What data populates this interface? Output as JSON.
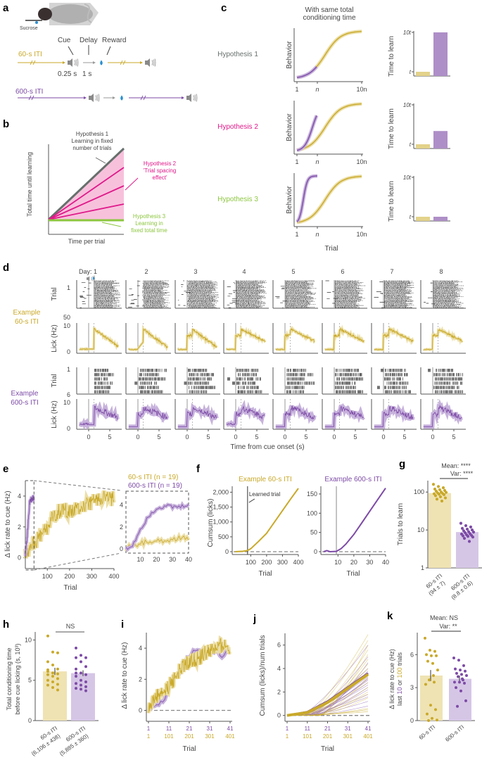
{
  "colors": {
    "iti60": "#c9a92a",
    "iti60_light": "#ecdfa8",
    "iti600": "#7d4ba6",
    "iti600_light": "#c7b2dc",
    "hyp1": "#66706c",
    "hyp2": "#e0198a",
    "hyp2_fill": "#f7c1dc",
    "hyp3": "#8cc63f",
    "water": "#2a8fd0",
    "raster": "#333333",
    "dashed": "#888888"
  },
  "panel_labels": [
    "a",
    "b",
    "c",
    "d",
    "e",
    "f",
    "g",
    "h",
    "i",
    "j",
    "k"
  ],
  "panel_a": {
    "sucrose_label": "Sucrose",
    "cue_label": "Cue",
    "delay_label": "Delay",
    "reward_label": "Reward",
    "iti60_label": "60-s ITI",
    "iti600_label": "600-s ITI",
    "cue_duration": "0.25 s",
    "delay_duration": "1 s",
    "icons": [
      "mouse-icon",
      "speaker-icon",
      "water-drop-icon"
    ]
  },
  "panel_b": {
    "ylabel": "Total time until learning",
    "xlabel": "Time per trial",
    "hyp1_text": [
      "Hypothesis 1",
      "Learning in fixed",
      "number of trials"
    ],
    "hyp2_text": [
      "Hypothesis 2",
      "'Trial spacing",
      "effect'"
    ],
    "hyp3_text": [
      "Hypothesis 3",
      "Learning in",
      "fixed total time"
    ]
  },
  "panel_c": {
    "title": [
      "With same total",
      "conditioning time"
    ],
    "rows": [
      {
        "label": "Hypothesis 1",
        "time_to_learn": {
          "iti60": 1,
          "iti600": 10
        }
      },
      {
        "label": "Hypothesis 2",
        "time_to_learn": {
          "iti60": 1,
          "iti600": 4
        }
      },
      {
        "label": "Hypothesis 3",
        "time_to_learn": {
          "iti60": 1,
          "iti600": 1
        }
      }
    ],
    "behavior_ylabel": "Behavior",
    "bar_ylabel": "Time to learn",
    "xticks": [
      "1",
      "n",
      "10n"
    ],
    "bar_yticks": [
      "t",
      "10t"
    ],
    "xlabel": "Trial"
  },
  "panel_d": {
    "day_prefix": "Day: ",
    "days": [
      "1",
      "2",
      "3",
      "4",
      "5",
      "6",
      "7",
      "8"
    ],
    "row60_label": [
      "Example",
      "60-s ITI"
    ],
    "row600_label": [
      "Example",
      "600-s ITI"
    ],
    "trial_ylabel": "Trial",
    "lick_ylabel": "Lick (Hz)",
    "raster60_yticks": [
      "1",
      "50"
    ],
    "raster600_yticks": [
      "1",
      "6"
    ],
    "lick_yticks": [
      "0",
      "10"
    ],
    "xticks": [
      "0",
      "5"
    ],
    "xlabel": "Time from cue onset (s)"
  },
  "chart_data": [
    {
      "id": "e",
      "type": "line",
      "xlabel": "Trial",
      "ylabel": "Δ lick rate to cue (Hz)",
      "xlim": [
        1,
        400
      ],
      "ylim": [
        -0.7,
        5
      ],
      "xticks": [
        100,
        200,
        300,
        400
      ],
      "yticks": [
        0,
        2,
        4
      ],
      "legend": [
        "60-s ITI (n = 19)",
        "600-s ITI (n = 19)"
      ],
      "legend_position": "top-right",
      "series": [
        {
          "name": "60-s ITI",
          "x": [
            1,
            25,
            50,
            75,
            100,
            125,
            150,
            175,
            200,
            225,
            250,
            275,
            300,
            325,
            350,
            375,
            400
          ],
          "values": [
            0.1,
            0.9,
            1.1,
            1.5,
            2.0,
            2.6,
            3.0,
            3.1,
            3.0,
            3.1,
            3.3,
            3.4,
            3.6,
            3.8,
            4.0,
            3.9,
            3.8
          ]
        },
        {
          "name": "600-s ITI",
          "x": [
            1,
            10,
            20,
            30,
            40
          ],
          "values": [
            0.1,
            1.5,
            3.6,
            3.8,
            3.9
          ]
        }
      ],
      "inset": {
        "xlim": [
          1,
          40
        ],
        "ylim": [
          -0.5,
          5
        ],
        "xticks": [
          10,
          20,
          30,
          40
        ],
        "yticks": [
          0,
          2,
          4
        ],
        "series": [
          {
            "name": "60-s ITI",
            "x": [
              1,
              5,
              10,
              15,
              20,
              25,
              30,
              35,
              40
            ],
            "values": [
              0.0,
              0.4,
              0.5,
              0.6,
              0.7,
              0.8,
              0.9,
              1.0,
              0.9
            ]
          },
          {
            "name": "600-s ITI",
            "x": [
              1,
              5,
              10,
              15,
              20,
              25,
              30,
              35,
              40
            ],
            "values": [
              0.0,
              0.3,
              1.8,
              3.0,
              3.7,
              3.9,
              3.8,
              3.8,
              4.1
            ]
          }
        ]
      }
    },
    {
      "id": "f1",
      "type": "line",
      "title": "Example 60-s ITI",
      "xlabel": "Trial",
      "ylabel": "Cumsum (licks)",
      "xlim": [
        1,
        400
      ],
      "ylim": [
        -100,
        2200
      ],
      "xticks": [
        100,
        200,
        300,
        400
      ],
      "yticks": [
        0,
        500,
        1000,
        1500,
        2000
      ],
      "ytick_labels": [
        "0",
        "500",
        "1,000",
        "1,500",
        "2,000"
      ],
      "annotation": "Learned trial",
      "learned_trial": 80,
      "x": [
        1,
        50,
        80,
        100,
        150,
        200,
        250,
        300,
        350,
        400
      ],
      "values": [
        0,
        15,
        40,
        100,
        350,
        620,
        1000,
        1380,
        1760,
        2130
      ]
    },
    {
      "id": "f2",
      "type": "line",
      "title": "Example 600-s ITI",
      "xlabel": "Trial",
      "ylabel": "",
      "xlim": [
        1,
        40
      ],
      "ylim": [
        -8,
        170
      ],
      "xticks": [
        10,
        20,
        30,
        40
      ],
      "yticks": [
        0,
        50,
        100,
        150
      ],
      "learned_trial": 9,
      "x": [
        1,
        3,
        5,
        9,
        12,
        15,
        20,
        25,
        30,
        35,
        40
      ],
      "values": [
        0,
        3,
        0,
        1,
        8,
        20,
        45,
        75,
        105,
        135,
        165
      ]
    },
    {
      "id": "g",
      "type": "bar",
      "ylabel": "Trials to learn",
      "yscale": "log",
      "ylim": [
        1,
        200
      ],
      "yticks": [
        1,
        10,
        100
      ],
      "categories": [
        "60-s ITI",
        "600-s ITI"
      ],
      "category_sublabels": [
        "(94 ± 7)",
        "(8.8 ± 0.6)"
      ],
      "values": [
        94,
        8.8
      ],
      "stats": {
        "mean": "Mean: ****",
        "var": "Var: ****"
      },
      "points": {
        "60-s ITI": [
          160,
          140,
          130,
          120,
          115,
          110,
          105,
          100,
          98,
          95,
          92,
          90,
          88,
          85,
          80,
          75,
          70,
          65,
          58
        ],
        "600-s ITI": [
          15,
          13,
          12,
          11,
          10.5,
          10,
          9.5,
          9,
          8.8,
          8.5,
          8,
          7.8,
          7.5,
          7.2,
          7,
          6.8,
          6.5,
          6,
          5
        ]
      }
    },
    {
      "id": "h",
      "type": "bar",
      "ylabel": "Total conditioning time before cue licking (s, 10³)",
      "ylim": [
        0,
        11
      ],
      "yticks": [
        0,
        5,
        10
      ],
      "categories": [
        "60-s ITI",
        "600-s ITI"
      ],
      "category_sublabels": [
        "(6,106 ± 438)",
        "(5,885 ± 360)"
      ],
      "values": [
        6.106,
        5.885
      ],
      "errors": [
        0.438,
        0.36
      ],
      "stats": {
        "mean": "NS"
      },
      "points": {
        "60-s ITI": [
          10.5,
          8.5,
          8.4,
          7.3,
          6.9,
          6.4,
          6.3,
          5.9,
          5.8,
          5.7,
          5.5,
          5.2,
          5.0,
          4.8,
          4.5,
          4.4,
          4.1,
          3.8,
          6.1
        ],
        "600-s ITI": [
          9.0,
          8.1,
          7.8,
          7.8,
          7.3,
          6.7,
          6.4,
          5.9,
          5.7,
          5.5,
          5.0,
          4.8,
          4.6,
          4.4,
          4.2,
          4.0,
          3.9,
          3.7,
          5.9
        ]
      }
    },
    {
      "id": "i",
      "type": "line",
      "xlabel": "Trial",
      "ylabel": "Δ lick rate to cue (Hz)",
      "ylim": [
        -0.7,
        5
      ],
      "yticks": [
        0,
        2,
        4
      ],
      "xtick_labels_600": [
        "1",
        "11",
        "21",
        "31",
        "41"
      ],
      "xtick_labels_60": [
        "1",
        "101",
        "201",
        "301",
        "401"
      ],
      "series": [
        {
          "name": "600-s ITI",
          "x_norm": [
            0,
            0.1,
            0.2,
            0.3,
            0.4,
            0.5,
            0.6,
            0.7,
            0.8,
            0.9,
            1.0
          ],
          "values": [
            0.0,
            0.4,
            0.7,
            2.1,
            2.6,
            3.5,
            4.0,
            3.8,
            3.9,
            3.6,
            4.0
          ]
        },
        {
          "name": "60-s ITI",
          "x_norm": [
            0,
            0.1,
            0.2,
            0.3,
            0.4,
            0.5,
            0.6,
            0.7,
            0.8,
            0.9,
            1.0
          ],
          "values": [
            0.2,
            0.9,
            1.2,
            1.9,
            2.8,
            3.1,
            3.3,
            3.7,
            3.9,
            4.2,
            4.0
          ]
        }
      ]
    },
    {
      "id": "j",
      "type": "line",
      "xlabel": "Trial",
      "ylabel": "Cumsum (licks)/num trials",
      "ylim": [
        -0.5,
        7
      ],
      "yticks": [
        0,
        2,
        4,
        6
      ],
      "xtick_labels_600": [
        "1",
        "11",
        "21",
        "31",
        "41"
      ],
      "xtick_labels_60": [
        "1",
        "101",
        "201",
        "301",
        "401"
      ],
      "series": [
        {
          "name": "600-s ITI mean",
          "x_norm": [
            0,
            0.25,
            0.5,
            0.75,
            1.0
          ],
          "values": [
            0,
            0.3,
            1.2,
            2.4,
            3.6
          ]
        },
        {
          "name": "60-s ITI mean",
          "x_norm": [
            0,
            0.25,
            0.5,
            0.75,
            1.0
          ],
          "values": [
            0,
            0.25,
            1.1,
            2.3,
            3.5
          ]
        }
      ],
      "individual_final_values": {
        "600-s ITI": [
          6.0,
          5.0,
          4.5,
          4.0,
          3.8,
          3.6,
          3.5,
          3.3,
          3.2,
          3.1,
          3.0,
          2.8,
          2.6,
          2.4,
          2.2,
          1.8,
          1.6,
          1.2,
          0.8
        ],
        "60-s ITI": [
          6.9,
          6.4,
          6.0,
          5.6,
          5.2,
          4.8,
          4.4,
          4.0,
          3.6,
          3.2,
          2.8,
          2.4,
          2.0,
          1.8,
          1.5,
          0.6,
          0.5,
          0.4,
          0.3
        ]
      }
    },
    {
      "id": "k",
      "type": "bar",
      "ylabel": "Δ lick rate to cue (Hz)",
      "ylabel2": [
        "last ",
        "10",
        " or ",
        "100",
        " trials"
      ],
      "ylim": [
        0,
        8
      ],
      "yticks": [
        0,
        3,
        6
      ],
      "categories": [
        "60-s ITI",
        "600-s ITI"
      ],
      "values": [
        4.1,
        3.8
      ],
      "errors": [
        0.5,
        0.3
      ],
      "stats": {
        "mean": "Mean: NS",
        "var": "Var: **"
      },
      "points": {
        "60-s ITI": [
          7.5,
          6.4,
          6.3,
          6.0,
          5.9,
          5.9,
          5.4,
          5.2,
          4.6,
          3.7,
          3.5,
          3.3,
          1.4,
          1.0,
          0.6,
          0.2,
          0.05,
          0.0,
          4.1
        ],
        "600-s ITI": [
          5.7,
          5.5,
          5.0,
          4.7,
          4.6,
          4.5,
          4.3,
          4.2,
          4.1,
          4.0,
          3.7,
          3.5,
          3.5,
          3.4,
          3.0,
          2.7,
          1.8,
          1.3,
          3.8
        ]
      }
    }
  ]
}
